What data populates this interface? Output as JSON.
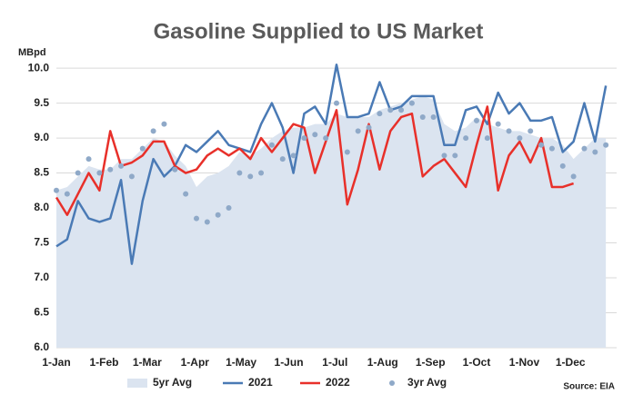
{
  "chart_data": {
    "type": "line",
    "title": "Gasoline Supplied to US Market",
    "y_label": "MBpd",
    "source": "Source: EIA",
    "x": [
      0,
      7,
      14,
      21,
      28,
      35,
      42,
      49,
      56,
      63,
      70,
      77,
      84,
      91,
      98,
      105,
      112,
      119,
      126,
      133,
      140,
      147,
      154,
      161,
      168,
      175,
      182,
      189,
      196,
      203,
      210,
      217,
      224,
      231,
      238,
      245,
      252,
      259,
      266,
      273,
      280,
      287,
      294,
      301,
      308,
      315,
      322,
      329,
      336,
      343,
      350,
      357
    ],
    "xlim": [
      0,
      364
    ],
    "xticks": [
      {
        "value": 0,
        "label": "1-Jan"
      },
      {
        "value": 31,
        "label": "1-Feb"
      },
      {
        "value": 59,
        "label": "1-Mar"
      },
      {
        "value": 90,
        "label": "1-Apr"
      },
      {
        "value": 120,
        "label": "1-May"
      },
      {
        "value": 151,
        "label": "1-Jun"
      },
      {
        "value": 181,
        "label": "1-Jul"
      },
      {
        "value": 212,
        "label": "1-Aug"
      },
      {
        "value": 243,
        "label": "1-Sep"
      },
      {
        "value": 273,
        "label": "1-Oct"
      },
      {
        "value": 304,
        "label": "1-Nov"
      },
      {
        "value": 334,
        "label": "1-Dec"
      }
    ],
    "ylim": [
      6,
      10.3
    ],
    "yticks": [
      {
        "value": 6,
        "label": "6.0"
      },
      6.5,
      {
        "value": 7,
        "label": "7.0"
      },
      7.5,
      {
        "value": 8,
        "label": "8.0"
      },
      8.5,
      {
        "value": 9,
        "label": "9.0"
      },
      9.5,
      {
        "value": 10,
        "label": "10.0"
      }
    ],
    "grid": true,
    "legend": "bottom",
    "series": [
      {
        "name": "5yr Avg",
        "style": "area",
        "color": "#dbe4f0",
        "values": [
          8.25,
          8.3,
          8.45,
          8.6,
          8.55,
          8.55,
          8.7,
          8.7,
          8.85,
          9.0,
          8.95,
          8.75,
          8.6,
          8.3,
          8.45,
          8.5,
          8.6,
          8.8,
          8.75,
          8.85,
          9.0,
          9.1,
          9.15,
          9.15,
          9.2,
          9.2,
          9.35,
          9.3,
          9.3,
          9.3,
          9.4,
          9.45,
          9.5,
          9.55,
          9.6,
          9.55,
          9.2,
          9.1,
          9.15,
          9.3,
          9.2,
          9.15,
          9.1,
          9.1,
          9.05,
          9.0,
          9.0,
          8.9,
          8.7,
          8.85,
          9.0,
          9.0
        ]
      },
      {
        "name": "2021",
        "style": "line",
        "color": "#4a7ab5",
        "values": [
          7.45,
          7.55,
          8.1,
          7.85,
          7.8,
          7.85,
          8.4,
          7.2,
          8.1,
          8.7,
          8.45,
          8.6,
          8.9,
          8.8,
          8.95,
          9.1,
          8.9,
          8.85,
          8.8,
          9.2,
          9.5,
          9.15,
          8.5,
          9.35,
          9.45,
          9.2,
          10.05,
          9.3,
          9.3,
          9.35,
          9.8,
          9.4,
          9.45,
          9.6,
          9.6,
          9.6,
          8.9,
          8.9,
          9.4,
          9.45,
          9.2,
          9.65,
          9.35,
          9.5,
          9.25,
          9.25,
          9.3,
          8.8,
          8.95,
          9.5,
          8.95,
          9.75
        ]
      },
      {
        "name": "2022",
        "style": "line",
        "color": "#e8302a",
        "values": [
          8.15,
          7.9,
          8.2,
          8.5,
          8.25,
          9.1,
          8.6,
          8.65,
          8.75,
          8.95,
          8.95,
          8.6,
          8.5,
          8.55,
          8.75,
          8.85,
          8.75,
          8.85,
          8.7,
          9.0,
          8.8,
          9.0,
          9.2,
          9.15,
          8.5,
          8.95,
          9.4,
          8.05,
          8.55,
          9.2,
          8.55,
          9.1,
          9.3,
          9.35,
          8.45,
          8.6,
          8.7,
          8.5,
          8.3,
          8.9,
          9.45,
          8.25,
          8.75,
          8.95,
          8.65,
          9.0,
          8.3,
          8.3,
          8.35,
          null,
          null,
          null
        ]
      },
      {
        "name": "3yr Avg",
        "style": "dots",
        "color": "#8fa9c8",
        "values": [
          8.25,
          8.2,
          8.5,
          8.7,
          8.5,
          8.55,
          8.6,
          8.45,
          8.85,
          9.1,
          9.2,
          8.55,
          8.2,
          7.85,
          7.8,
          7.9,
          8.0,
          8.5,
          8.45,
          8.5,
          8.9,
          8.7,
          8.75,
          9.0,
          9.05,
          9.0,
          9.5,
          8.8,
          9.1,
          9.15,
          9.35,
          9.4,
          9.4,
          9.5,
          9.3,
          9.3,
          8.75,
          8.75,
          9.0,
          9.25,
          9.0,
          9.2,
          9.1,
          9.0,
          9.1,
          8.9,
          8.85,
          8.6,
          8.45,
          8.85,
          8.8,
          8.9
        ]
      }
    ]
  }
}
